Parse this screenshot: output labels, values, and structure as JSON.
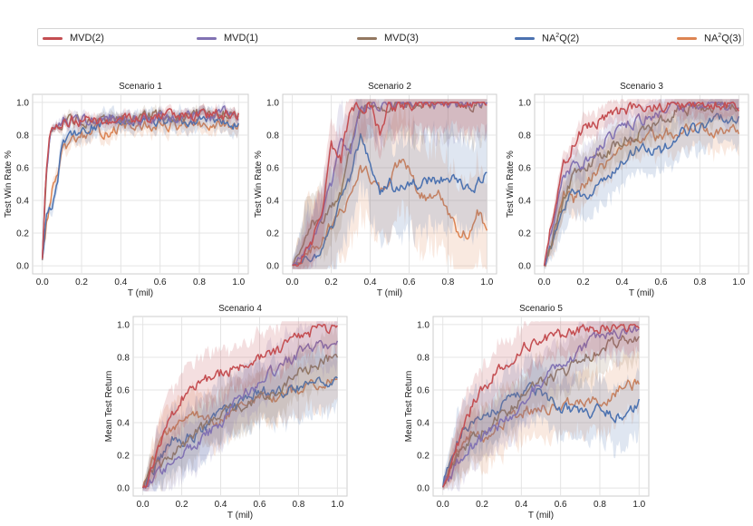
{
  "legend": [
    {
      "label": "MVD(2)",
      "series": "mvd2",
      "color": "#c44e52"
    },
    {
      "label": "MVD(1)",
      "series": "mvd1",
      "color": "#8172b3"
    },
    {
      "label": "MVD(3)",
      "series": "mvd3",
      "color": "#937860"
    },
    {
      "label": "NA²Q(2)",
      "base": "NA",
      "sup": "2",
      "suffix": "Q(2)",
      "series": "na2q2",
      "color": "#4c72b0"
    },
    {
      "label": "NA²Q(3)",
      "base": "NA",
      "sup": "2",
      "suffix": "Q(3)",
      "series": "na2q3",
      "color": "#dd8452"
    }
  ],
  "chart_data": [
    {
      "type": "line",
      "title": "Scenario 1",
      "xlabel": "T (mil)",
      "ylabel": "Test Win Rate %",
      "xlim": [
        0,
        1
      ],
      "ylim": [
        0,
        1
      ],
      "xticks": [
        "0.0",
        "0.2",
        "0.4",
        "0.6",
        "0.8",
        "1.0"
      ],
      "yticks": [
        "0.0",
        "0.2",
        "0.4",
        "0.6",
        "0.8",
        "1.0"
      ],
      "series": [
        {
          "key": "na2q3",
          "x": [
            0,
            0.02,
            0.05,
            0.1,
            0.15,
            0.2,
            0.3,
            0.4,
            0.5,
            0.6,
            0.7,
            0.8,
            0.9,
            1.0
          ],
          "y": [
            0.05,
            0.25,
            0.45,
            0.68,
            0.75,
            0.8,
            0.82,
            0.84,
            0.85,
            0.86,
            0.86,
            0.85,
            0.86,
            0.85
          ],
          "band": 0.05
        },
        {
          "key": "na2q2",
          "x": [
            0,
            0.02,
            0.05,
            0.08,
            0.1,
            0.15,
            0.2,
            0.3,
            0.4,
            0.5,
            0.6,
            0.7,
            0.8,
            0.9,
            1.0
          ],
          "y": [
            0.05,
            0.3,
            0.38,
            0.55,
            0.72,
            0.8,
            0.84,
            0.86,
            0.88,
            0.89,
            0.9,
            0.9,
            0.89,
            0.88,
            0.88
          ],
          "band": 0.06
        },
        {
          "key": "mvd3",
          "x": [
            0,
            0.02,
            0.04,
            0.06,
            0.1,
            0.2,
            0.3,
            0.4,
            0.5,
            0.6,
            0.7,
            0.8,
            0.9,
            1.0
          ],
          "y": [
            0.05,
            0.55,
            0.78,
            0.86,
            0.88,
            0.89,
            0.9,
            0.9,
            0.91,
            0.92,
            0.92,
            0.93,
            0.94,
            0.94
          ],
          "band": 0.03
        },
        {
          "key": "mvd1",
          "x": [
            0,
            0.02,
            0.04,
            0.06,
            0.1,
            0.2,
            0.3,
            0.4,
            0.5,
            0.6,
            0.7,
            0.8,
            0.9,
            1.0
          ],
          "y": [
            0.05,
            0.55,
            0.8,
            0.87,
            0.88,
            0.89,
            0.9,
            0.9,
            0.91,
            0.91,
            0.92,
            0.92,
            0.93,
            0.93
          ],
          "band": 0.03
        },
        {
          "key": "mvd2",
          "x": [
            0,
            0.02,
            0.04,
            0.06,
            0.1,
            0.2,
            0.3,
            0.4,
            0.5,
            0.6,
            0.7,
            0.8,
            0.9,
            1.0
          ],
          "y": [
            0.05,
            0.6,
            0.82,
            0.87,
            0.88,
            0.88,
            0.89,
            0.9,
            0.9,
            0.91,
            0.92,
            0.92,
            0.92,
            0.93
          ],
          "band": 0.03
        }
      ]
    },
    {
      "type": "line",
      "title": "Scenario 2",
      "xlabel": "T (mil)",
      "ylabel": "Test Win Rate %",
      "xlim": [
        0,
        1
      ],
      "ylim": [
        0,
        1
      ],
      "xticks": [
        "0.0",
        "0.2",
        "0.4",
        "0.6",
        "0.8",
        "1.0"
      ],
      "yticks": [
        "0.0",
        "0.2",
        "0.4",
        "0.6",
        "0.8",
        "1.0"
      ],
      "series": [
        {
          "key": "na2q3",
          "x": [
            0,
            0.05,
            0.1,
            0.15,
            0.2,
            0.25,
            0.3,
            0.35,
            0.4,
            0.45,
            0.5,
            0.55,
            0.6,
            0.65,
            0.7,
            0.75,
            0.8,
            0.85,
            0.9,
            0.95,
            1.0
          ],
          "y": [
            0,
            0.02,
            0.1,
            0.15,
            0.25,
            0.35,
            0.4,
            0.6,
            0.55,
            0.45,
            0.5,
            0.65,
            0.6,
            0.45,
            0.4,
            0.45,
            0.3,
            0.2,
            0.2,
            0.35,
            0.22
          ],
          "band": 0.3
        },
        {
          "key": "na2q2",
          "x": [
            0,
            0.05,
            0.1,
            0.15,
            0.2,
            0.25,
            0.3,
            0.35,
            0.4,
            0.45,
            0.5,
            0.55,
            0.6,
            0.65,
            0.7,
            0.75,
            0.8,
            0.85,
            0.9,
            0.95,
            1.0
          ],
          "y": [
            0,
            0.02,
            0.05,
            0.1,
            0.2,
            0.4,
            0.55,
            0.8,
            0.6,
            0.45,
            0.5,
            0.45,
            0.5,
            0.5,
            0.52,
            0.5,
            0.55,
            0.5,
            0.5,
            0.5,
            0.6
          ],
          "band": 0.3
        },
        {
          "key": "mvd3",
          "x": [
            0,
            0.05,
            0.1,
            0.15,
            0.2,
            0.25,
            0.3,
            0.35,
            0.4,
            0.5,
            0.6,
            0.7,
            0.8,
            0.9,
            1.0
          ],
          "y": [
            0,
            0.1,
            0.25,
            0.3,
            0.35,
            0.45,
            0.75,
            0.95,
            0.98,
            0.98,
            0.99,
            0.99,
            0.99,
            0.99,
            0.99
          ],
          "band": 0.2
        },
        {
          "key": "mvd1",
          "x": [
            0,
            0.05,
            0.1,
            0.15,
            0.2,
            0.25,
            0.3,
            0.35,
            0.4,
            0.5,
            0.6,
            0.7,
            0.8,
            0.9,
            1.0
          ],
          "y": [
            0,
            0.05,
            0.15,
            0.3,
            0.5,
            0.75,
            0.7,
            0.98,
            0.98,
            0.99,
            0.99,
            0.99,
            0.99,
            0.99,
            0.99
          ],
          "band": 0.2
        },
        {
          "key": "mvd2",
          "x": [
            0,
            0.05,
            0.1,
            0.15,
            0.2,
            0.25,
            0.3,
            0.35,
            0.4,
            0.45,
            0.5,
            0.6,
            0.7,
            0.8,
            0.9,
            1.0
          ],
          "y": [
            0,
            0.05,
            0.15,
            0.3,
            0.75,
            0.65,
            0.97,
            0.98,
            0.99,
            0.8,
            0.98,
            0.99,
            0.99,
            0.99,
            0.99,
            0.99
          ],
          "band": 0.15
        }
      ]
    },
    {
      "type": "line",
      "title": "Scenario 3",
      "xlabel": "T (mil)",
      "ylabel": "Test Win Rate %",
      "xlim": [
        0,
        1
      ],
      "ylim": [
        0,
        1
      ],
      "xticks": [
        "0.0",
        "0.2",
        "0.4",
        "0.6",
        "0.8",
        "1.0"
      ],
      "yticks": [
        "0.0",
        "0.2",
        "0.4",
        "0.6",
        "0.8",
        "1.0"
      ],
      "series": [
        {
          "key": "na2q3",
          "x": [
            0,
            0.05,
            0.1,
            0.15,
            0.2,
            0.3,
            0.4,
            0.5,
            0.6,
            0.7,
            0.8,
            0.9,
            1.0
          ],
          "y": [
            0,
            0.2,
            0.45,
            0.4,
            0.5,
            0.6,
            0.72,
            0.8,
            0.8,
            0.82,
            0.85,
            0.82,
            0.84
          ],
          "band": 0.12
        },
        {
          "key": "na2q2",
          "x": [
            0,
            0.05,
            0.1,
            0.15,
            0.2,
            0.3,
            0.4,
            0.5,
            0.6,
            0.7,
            0.8,
            0.9,
            1.0
          ],
          "y": [
            0,
            0.15,
            0.35,
            0.45,
            0.4,
            0.5,
            0.65,
            0.75,
            0.7,
            0.8,
            0.85,
            0.9,
            0.91
          ],
          "band": 0.14
        },
        {
          "key": "mvd3",
          "x": [
            0,
            0.05,
            0.1,
            0.15,
            0.2,
            0.3,
            0.4,
            0.5,
            0.6,
            0.7,
            0.8,
            0.9,
            1.0
          ],
          "y": [
            0,
            0.2,
            0.4,
            0.55,
            0.6,
            0.68,
            0.78,
            0.82,
            0.9,
            0.95,
            0.97,
            0.98,
            0.98
          ],
          "band": 0.1
        },
        {
          "key": "mvd1",
          "x": [
            0,
            0.05,
            0.1,
            0.15,
            0.2,
            0.3,
            0.4,
            0.5,
            0.6,
            0.7,
            0.8,
            0.9,
            1.0
          ],
          "y": [
            0,
            0.3,
            0.55,
            0.6,
            0.62,
            0.75,
            0.85,
            0.9,
            0.95,
            0.98,
            0.99,
            0.99,
            0.99
          ],
          "band": 0.1
        },
        {
          "key": "mvd2",
          "x": [
            0,
            0.05,
            0.1,
            0.15,
            0.2,
            0.3,
            0.4,
            0.5,
            0.6,
            0.7,
            0.8,
            0.9,
            1.0
          ],
          "y": [
            0,
            0.35,
            0.6,
            0.75,
            0.85,
            0.9,
            0.95,
            0.97,
            0.98,
            0.99,
            0.99,
            0.99,
            0.99
          ],
          "band": 0.07
        }
      ]
    },
    {
      "type": "line",
      "title": "Scenario 4",
      "xlabel": "T (mil)",
      "ylabel": "Mean Test Return",
      "xlim": [
        0,
        1
      ],
      "ylim": [
        0,
        1
      ],
      "xticks": [
        "0.0",
        "0.2",
        "0.4",
        "0.6",
        "0.8",
        "1.0"
      ],
      "yticks": [
        "0.0",
        "0.2",
        "0.4",
        "0.6",
        "0.8",
        "1.0"
      ],
      "series": [
        {
          "key": "na2q3",
          "x": [
            0,
            0.05,
            0.1,
            0.15,
            0.2,
            0.3,
            0.4,
            0.5,
            0.6,
            0.7,
            0.8,
            0.9,
            1.0
          ],
          "y": [
            0,
            0.15,
            0.3,
            0.35,
            0.4,
            0.45,
            0.4,
            0.5,
            0.55,
            0.55,
            0.6,
            0.62,
            0.65
          ],
          "band": 0.15
        },
        {
          "key": "na2q2",
          "x": [
            0,
            0.05,
            0.1,
            0.15,
            0.2,
            0.3,
            0.4,
            0.5,
            0.6,
            0.7,
            0.8,
            0.9,
            1.0
          ],
          "y": [
            0,
            0.1,
            0.2,
            0.3,
            0.28,
            0.35,
            0.45,
            0.5,
            0.6,
            0.58,
            0.62,
            0.65,
            0.68
          ],
          "band": 0.18
        },
        {
          "key": "mvd3",
          "x": [
            0,
            0.05,
            0.1,
            0.15,
            0.2,
            0.3,
            0.4,
            0.5,
            0.6,
            0.7,
            0.8,
            0.9,
            1.0
          ],
          "y": [
            0,
            0.1,
            0.15,
            0.2,
            0.25,
            0.35,
            0.45,
            0.5,
            0.55,
            0.62,
            0.7,
            0.75,
            0.82
          ],
          "band": 0.15
        },
        {
          "key": "mvd1",
          "x": [
            0,
            0.05,
            0.1,
            0.15,
            0.2,
            0.3,
            0.4,
            0.5,
            0.6,
            0.7,
            0.8,
            0.9,
            1.0
          ],
          "y": [
            0,
            0.05,
            0.1,
            0.15,
            0.2,
            0.3,
            0.4,
            0.55,
            0.65,
            0.75,
            0.82,
            0.87,
            0.88
          ],
          "band": 0.15
        },
        {
          "key": "mvd2",
          "x": [
            0,
            0.05,
            0.1,
            0.15,
            0.2,
            0.3,
            0.4,
            0.5,
            0.6,
            0.7,
            0.8,
            0.9,
            1.0
          ],
          "y": [
            0,
            0.1,
            0.3,
            0.45,
            0.55,
            0.65,
            0.7,
            0.75,
            0.8,
            0.85,
            0.92,
            0.97,
            0.99
          ],
          "band": 0.15
        }
      ]
    },
    {
      "type": "line",
      "title": "Scenario 5",
      "xlabel": "T (mil)",
      "ylabel": "Mean Test Return",
      "xlim": [
        0,
        1
      ],
      "ylim": [
        0,
        1
      ],
      "xticks": [
        "0.0",
        "0.2",
        "0.4",
        "0.6",
        "0.8",
        "1.0"
      ],
      "yticks": [
        "0.0",
        "0.2",
        "0.4",
        "0.6",
        "0.8",
        "1.0"
      ],
      "series": [
        {
          "key": "na2q3",
          "x": [
            0,
            0.05,
            0.1,
            0.15,
            0.2,
            0.3,
            0.4,
            0.5,
            0.6,
            0.7,
            0.8,
            0.9,
            1.0
          ],
          "y": [
            0,
            0.15,
            0.3,
            0.35,
            0.3,
            0.4,
            0.45,
            0.5,
            0.48,
            0.55,
            0.52,
            0.6,
            0.65
          ],
          "band": 0.18
        },
        {
          "key": "na2q2",
          "x": [
            0,
            0.05,
            0.1,
            0.15,
            0.2,
            0.3,
            0.4,
            0.5,
            0.6,
            0.7,
            0.8,
            0.9,
            1.0
          ],
          "y": [
            0,
            0.2,
            0.35,
            0.4,
            0.45,
            0.5,
            0.6,
            0.6,
            0.5,
            0.45,
            0.48,
            0.42,
            0.52
          ],
          "band": 0.18
        },
        {
          "key": "mvd3",
          "x": [
            0,
            0.05,
            0.1,
            0.15,
            0.2,
            0.3,
            0.4,
            0.5,
            0.6,
            0.7,
            0.8,
            0.9,
            1.0
          ],
          "y": [
            0,
            0.15,
            0.25,
            0.3,
            0.35,
            0.45,
            0.55,
            0.65,
            0.7,
            0.78,
            0.85,
            0.9,
            0.92
          ],
          "band": 0.15
        },
        {
          "key": "mvd1",
          "x": [
            0,
            0.05,
            0.1,
            0.15,
            0.2,
            0.3,
            0.4,
            0.5,
            0.6,
            0.7,
            0.8,
            0.9,
            1.0
          ],
          "y": [
            0,
            0.1,
            0.2,
            0.25,
            0.3,
            0.4,
            0.5,
            0.65,
            0.75,
            0.85,
            0.92,
            0.96,
            0.98
          ],
          "band": 0.15
        },
        {
          "key": "mvd2",
          "x": [
            0,
            0.05,
            0.1,
            0.15,
            0.2,
            0.3,
            0.4,
            0.5,
            0.6,
            0.7,
            0.8,
            0.9,
            1.0
          ],
          "y": [
            0,
            0.15,
            0.35,
            0.5,
            0.6,
            0.75,
            0.85,
            0.9,
            0.93,
            0.96,
            0.98,
            0.99,
            1.0
          ],
          "band": 0.15
        }
      ]
    }
  ]
}
